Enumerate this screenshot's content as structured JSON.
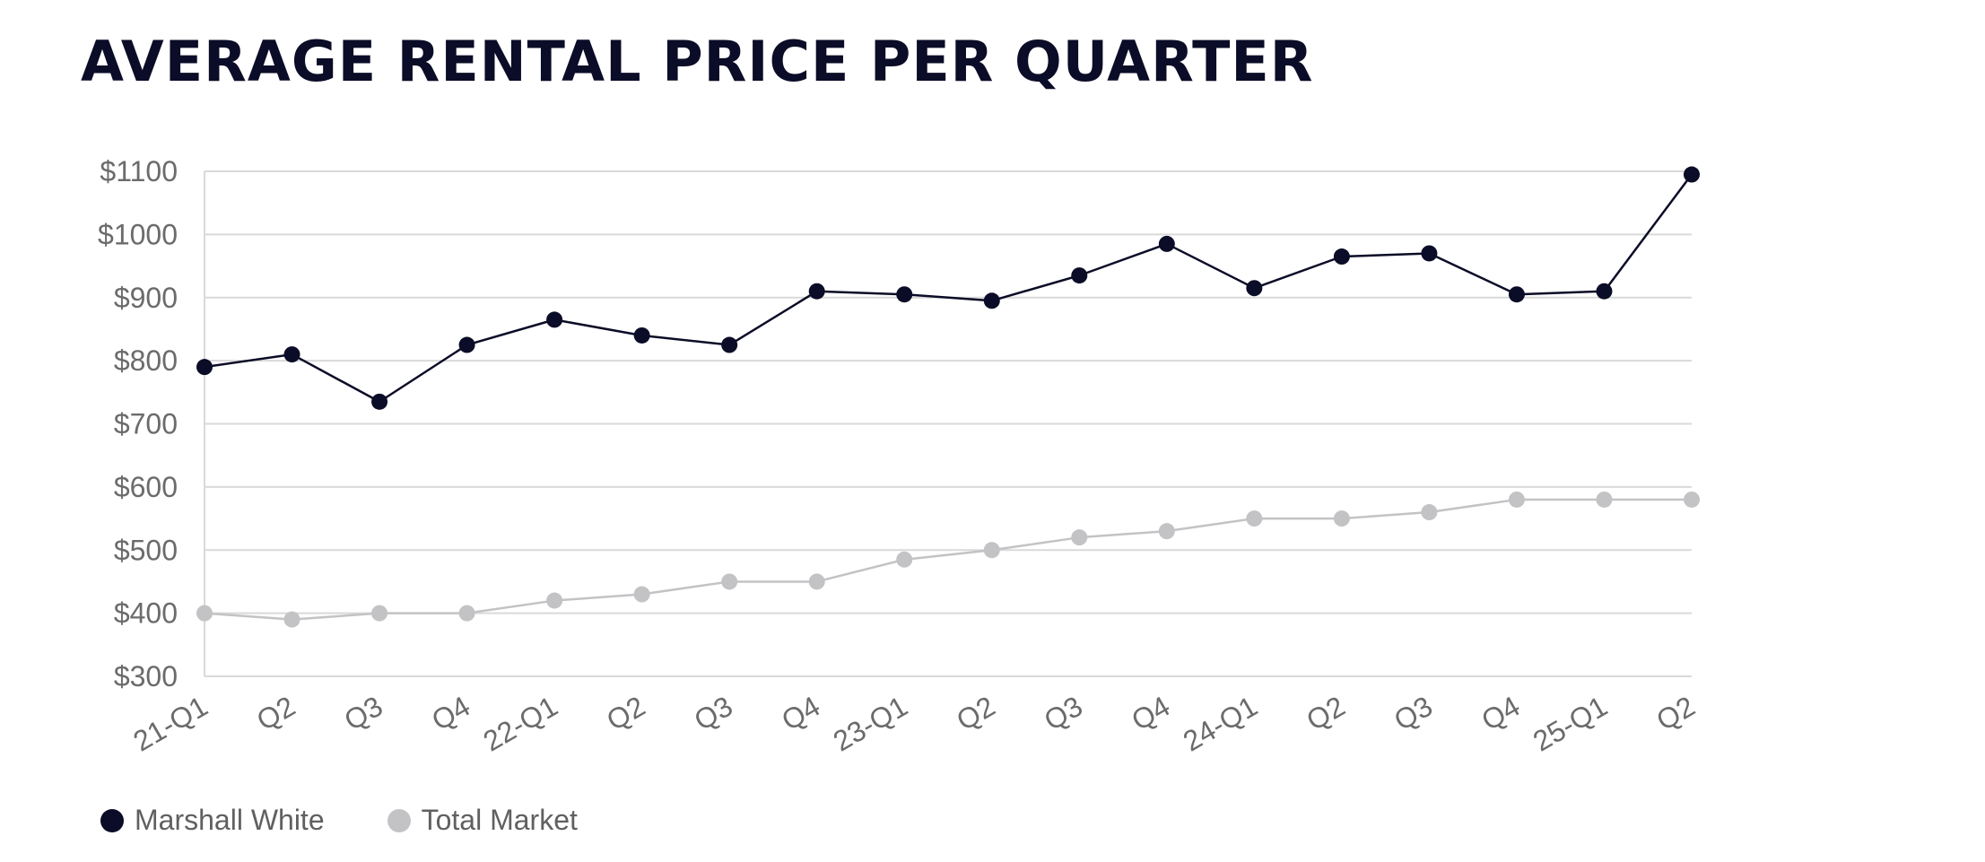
{
  "title": "AVERAGE RENTAL PRICE PER QUARTER",
  "colors": {
    "series_dark": "#0b0c27",
    "series_light": "#c3c3c5",
    "grid": "#d9d9d9",
    "tick_text": "#6b6b6b"
  },
  "legend": [
    {
      "label": "Marshall White",
      "color": "#0b0c27"
    },
    {
      "label": "Total Market",
      "color": "#c3c3c5"
    }
  ],
  "chart_data": {
    "type": "line",
    "title": "AVERAGE RENTAL PRICE PER QUARTER",
    "xlabel": "",
    "ylabel": "",
    "categories": [
      "21-Q1",
      "Q2",
      "Q3",
      "Q4",
      "22-Q1",
      "Q2",
      "Q3",
      "Q4",
      "23-Q1",
      "Q2",
      "Q3",
      "Q4",
      "24-Q1",
      "Q2",
      "Q3",
      "Q4",
      "25-Q1",
      "Q2"
    ],
    "ylim": [
      300,
      1100
    ],
    "yticks": [
      300,
      400,
      500,
      600,
      700,
      800,
      900,
      1000,
      1100
    ],
    "ytick_labels": [
      "$300",
      "$400",
      "$500",
      "$600",
      "$700",
      "$800",
      "$900",
      "$1000",
      "$1100"
    ],
    "grid": true,
    "legend_position": "bottom-left",
    "series": [
      {
        "name": "Marshall White",
        "color": "#0b0c27",
        "values": [
          790,
          810,
          735,
          825,
          865,
          840,
          825,
          910,
          905,
          895,
          935,
          985,
          915,
          965,
          970,
          905,
          910,
          1095
        ]
      },
      {
        "name": "Total Market",
        "color": "#c3c3c5",
        "values": [
          400,
          390,
          400,
          400,
          420,
          430,
          450,
          450,
          485,
          500,
          520,
          530,
          550,
          550,
          560,
          580,
          580,
          580
        ]
      }
    ]
  }
}
